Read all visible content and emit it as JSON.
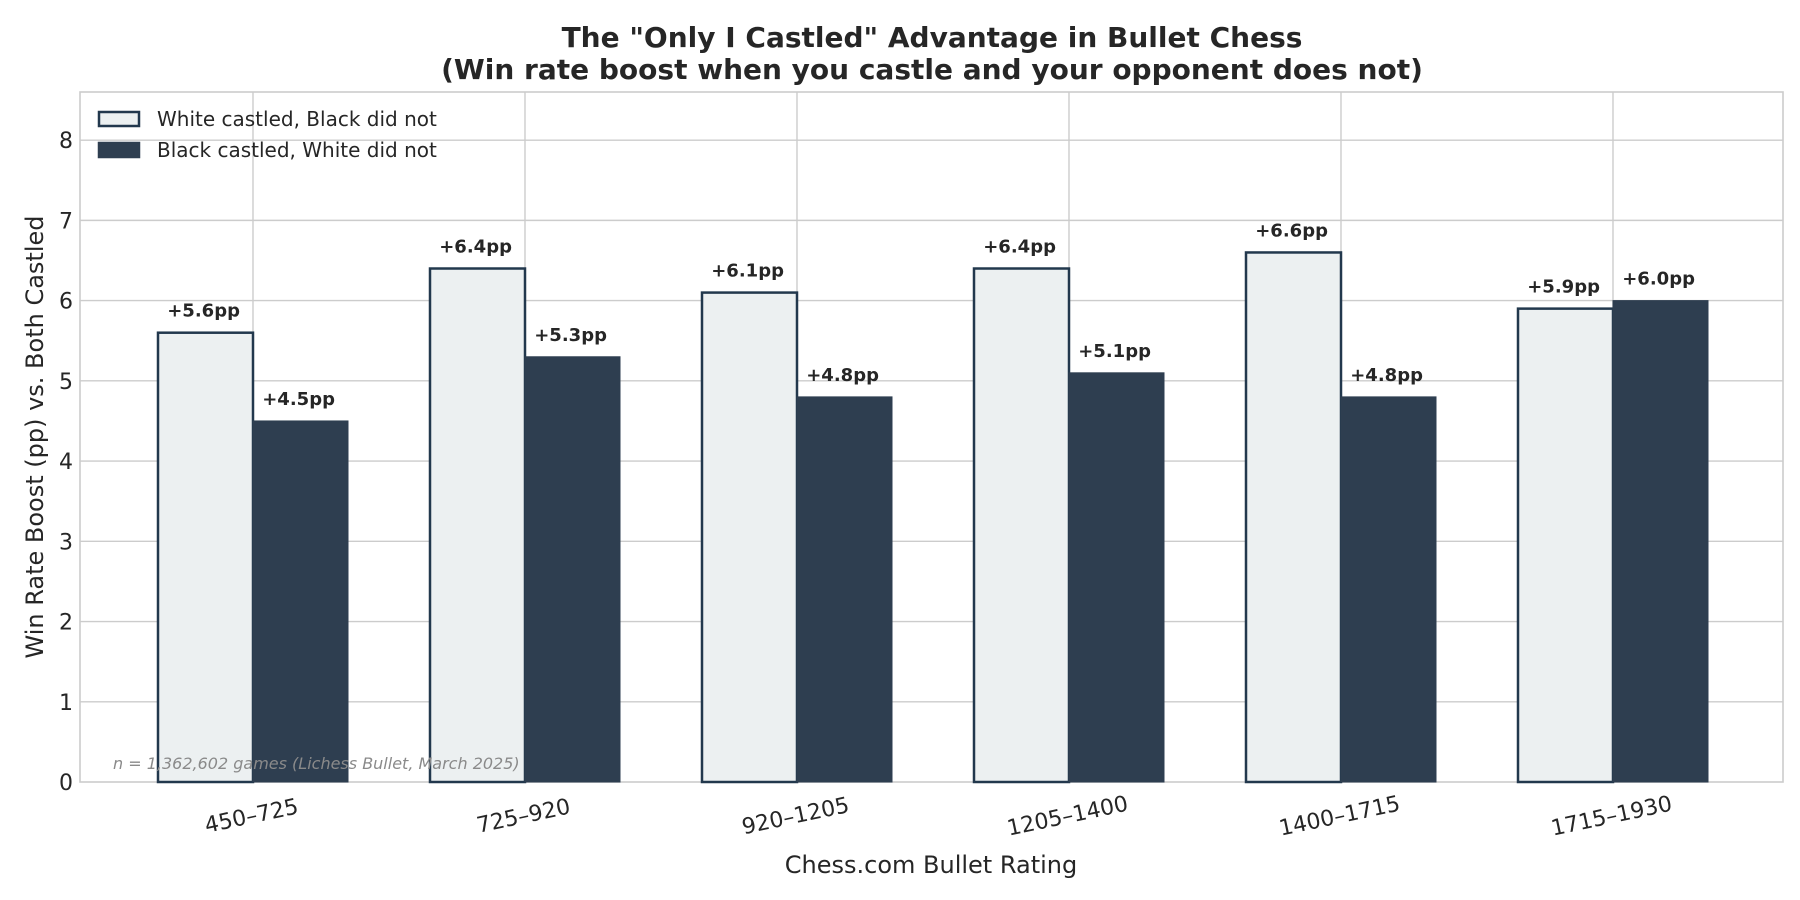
{
  "chart_data": {
    "type": "bar",
    "title": "The \"Only I Castled\" Advantage in Bullet Chess",
    "subtitle": "(Win rate boost when you castle and your opponent does not)",
    "xlabel": "Chess.com Bullet Rating",
    "ylabel": "Win Rate Boost (pp) vs. Both Castled",
    "categories": [
      "450–725",
      "725–920",
      "920–1205",
      "1205–1400",
      "1400–1715",
      "1715–1930"
    ],
    "series": [
      {
        "name": "White castled, Black did not",
        "values": [
          5.6,
          6.4,
          6.1,
          6.4,
          6.6,
          5.9
        ],
        "labels": [
          "+5.6pp",
          "+6.4pp",
          "+6.1pp",
          "+6.4pp",
          "+6.6pp",
          "+5.9pp"
        ],
        "fill": "#ecf0f1",
        "stroke": "#22384d"
      },
      {
        "name": "Black castled, White did not",
        "values": [
          4.5,
          5.3,
          4.8,
          5.1,
          4.8,
          6.0
        ],
        "labels": [
          "+4.5pp",
          "+5.3pp",
          "+4.8pp",
          "+5.1pp",
          "+4.8pp",
          "+6.0pp"
        ],
        "fill": "#2e3e50",
        "stroke": "#2e3e50"
      }
    ],
    "ylim": [
      0,
      8.6
    ],
    "yticks": [
      "0",
      "1",
      "2",
      "3",
      "4",
      "5",
      "6",
      "7",
      "8"
    ],
    "grid": true,
    "legend_position": "top-left",
    "annotation": "n = 1,362,602 games (Lichess Bullet, March 2025)"
  }
}
